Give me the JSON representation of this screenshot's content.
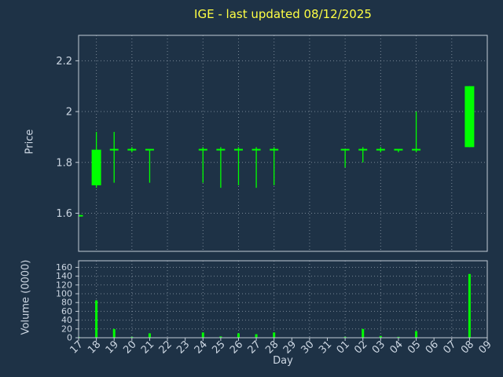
{
  "colors": {
    "background": "#1e3246",
    "candle": "#00ff00",
    "grid": "#cfd9e3",
    "spine": "#c2ccd6",
    "title": "#ffff44",
    "label": "#ccd6e2"
  },
  "chart_data": {
    "type": "candlestick",
    "title": "IGE - last updated 08/12/2025",
    "xlabel": "Day",
    "price_ylabel": "Price",
    "volume_ylabel": "Volume (0000)",
    "price_ylim": [
      1.45,
      2.3
    ],
    "price_yticks": [
      1.6,
      1.8,
      2,
      2.2
    ],
    "volume_ylim": [
      0,
      175
    ],
    "volume_yticks": [
      0,
      20,
      40,
      60,
      80,
      100,
      120,
      140,
      160
    ],
    "grid": "dotted",
    "legend": "none",
    "categories": [
      "17",
      "18",
      "19",
      "20",
      "21",
      "22",
      "23",
      "24",
      "25",
      "26",
      "27",
      "28",
      "29",
      "30",
      "31",
      "01",
      "02",
      "03",
      "04",
      "05",
      "06",
      "07",
      "08",
      "09"
    ],
    "candles": [
      {
        "day": "17",
        "open": 1.59,
        "high": 1.59,
        "low": 1.59,
        "close": 1.59,
        "volume": 2
      },
      {
        "day": "18",
        "open": 1.71,
        "high": 1.92,
        "low": 1.7,
        "close": 1.85,
        "volume": 85
      },
      {
        "day": "19",
        "open": 1.85,
        "high": 1.92,
        "low": 1.72,
        "close": 1.85,
        "volume": 20
      },
      {
        "day": "20",
        "open": 1.85,
        "high": 1.86,
        "low": 1.84,
        "close": 1.85,
        "volume": 2
      },
      {
        "day": "21",
        "open": 1.85,
        "high": 1.85,
        "low": 1.72,
        "close": 1.85,
        "volume": 10
      },
      {
        "day": "24",
        "open": 1.85,
        "high": 1.86,
        "low": 1.72,
        "close": 1.85,
        "volume": 12
      },
      {
        "day": "25",
        "open": 1.85,
        "high": 1.86,
        "low": 1.7,
        "close": 1.85,
        "volume": 3
      },
      {
        "day": "26",
        "open": 1.85,
        "high": 1.86,
        "low": 1.71,
        "close": 1.85,
        "volume": 10
      },
      {
        "day": "27",
        "open": 1.85,
        "high": 1.86,
        "low": 1.7,
        "close": 1.85,
        "volume": 8
      },
      {
        "day": "28",
        "open": 1.85,
        "high": 1.86,
        "low": 1.71,
        "close": 1.85,
        "volume": 12
      },
      {
        "day": "01",
        "open": 1.85,
        "high": 1.85,
        "low": 1.78,
        "close": 1.85,
        "volume": 2
      },
      {
        "day": "02",
        "open": 1.85,
        "high": 1.86,
        "low": 1.8,
        "close": 1.85,
        "volume": 20
      },
      {
        "day": "03",
        "open": 1.85,
        "high": 1.86,
        "low": 1.84,
        "close": 1.85,
        "volume": 4
      },
      {
        "day": "04",
        "open": 1.85,
        "high": 1.85,
        "low": 1.84,
        "close": 1.85,
        "volume": 2
      },
      {
        "day": "05",
        "open": 1.85,
        "high": 2.0,
        "low": 1.84,
        "close": 1.85,
        "volume": 15
      },
      {
        "day": "08",
        "open": 1.86,
        "high": 2.1,
        "low": 1.86,
        "close": 2.1,
        "volume": 145
      }
    ]
  }
}
